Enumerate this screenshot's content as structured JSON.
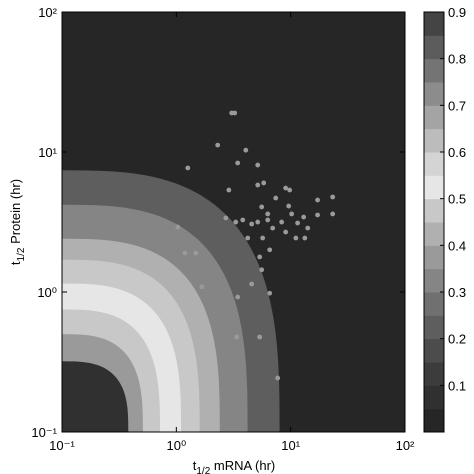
{
  "chart_data": {
    "type": "contour-scatter",
    "xlabel": [
      "t",
      "1/2",
      " mRNA (hr)"
    ],
    "ylabel": [
      "t",
      "1/2",
      " Protein (hr)"
    ],
    "xscale": "log",
    "yscale": "log",
    "xlim": [
      0.1,
      100
    ],
    "ylim": [
      0.1,
      100
    ],
    "xticks": [
      {
        "value": 0.1,
        "label": "10⁻¹"
      },
      {
        "value": 1,
        "label": "10⁰"
      },
      {
        "value": 10,
        "label": "10¹"
      },
      {
        "value": 100,
        "label": "10²"
      }
    ],
    "yticks": [
      {
        "value": 0.1,
        "label": "10⁻¹"
      },
      {
        "value": 1,
        "label": "10⁰"
      },
      {
        "value": 10,
        "label": "10¹"
      },
      {
        "value": 100,
        "label": "10²"
      }
    ],
    "clim": [
      0,
      0.9
    ],
    "cticks": [
      0.1,
      0.2,
      0.3,
      0.4,
      0.5,
      0.6,
      0.7,
      0.8,
      0.9
    ],
    "colormap": [
      "#262626",
      "#303030",
      "#3c3c3c",
      "#4c4c4c",
      "#5e5e5e",
      "#707070",
      "#858585",
      "#9a9a9a",
      "#b0b0b0",
      "#c8c8c8",
      "#e6e6e6",
      "#d4d4d4",
      "#bcbcbc",
      "#a4a4a4",
      "#8c8c8c",
      "#747474",
      "#5c5c5c",
      "#444444"
    ],
    "background_level": 0.03,
    "contours": [
      {
        "level": 0.22,
        "x_extent": 8.0,
        "y_extent": 7.4
      },
      {
        "level": 0.31,
        "x_extent": 4.2,
        "y_extent": 4.2
      },
      {
        "level": 0.41,
        "x_extent": 2.4,
        "y_extent": 2.4
      },
      {
        "level": 0.47,
        "x_extent": 1.6,
        "y_extent": 1.7
      },
      {
        "level": 0.52,
        "x_extent": 1.1,
        "y_extent": 1.15
      },
      {
        "level": 0.46,
        "x_extent": 0.72,
        "y_extent": 0.75
      },
      {
        "level": 0.36,
        "x_extent": 0.51,
        "y_extent": 0.5
      },
      {
        "level": 0.07,
        "x_extent": 0.38,
        "y_extent": 0.32
      }
    ],
    "point_color": "#9a9a9a",
    "x": [
      3.05,
      3.24,
      2.3,
      4.05,
      1.26,
      3.44,
      5.15,
      2.88,
      5.15,
      5.81,
      9.04,
      9.8,
      7.4,
      17.2,
      23.3,
      23.3,
      17.2,
      5.58,
      6.3,
      9.61,
      10.2,
      13.0,
      2.71,
      3.81,
      3.31,
      4.56,
      5.15,
      6.3,
      6.96,
      8.34,
      11.5,
      14.1,
      9.04,
      11.1,
      13.3,
      5.69,
      4.21,
      6.56,
      5.36,
      5.58,
      1.03,
      1.19,
      1.48,
      1.67,
      3.44,
      4.56,
      6.56,
      3.38,
      5.36,
      7.7
    ],
    "y": [
      19.0,
      19.0,
      11.2,
      10.3,
      7.69,
      8.35,
      8.07,
      5.35,
      5.81,
      6.01,
      5.53,
      5.35,
      4.69,
      4.54,
      4.77,
      3.61,
      3.55,
      4.05,
      3.61,
      4.11,
      3.61,
      3.43,
      3.38,
      3.27,
      3.16,
      3.06,
      3.16,
      3.27,
      2.86,
      3.16,
      3.11,
      2.86,
      2.68,
      2.43,
      2.43,
      2.43,
      2.43,
      2.0,
      1.78,
      1.44,
      2.91,
      1.9,
      1.9,
      1.09,
      0.92,
      1.14,
      0.98,
      0.477,
      0.477,
      0.243
    ]
  }
}
